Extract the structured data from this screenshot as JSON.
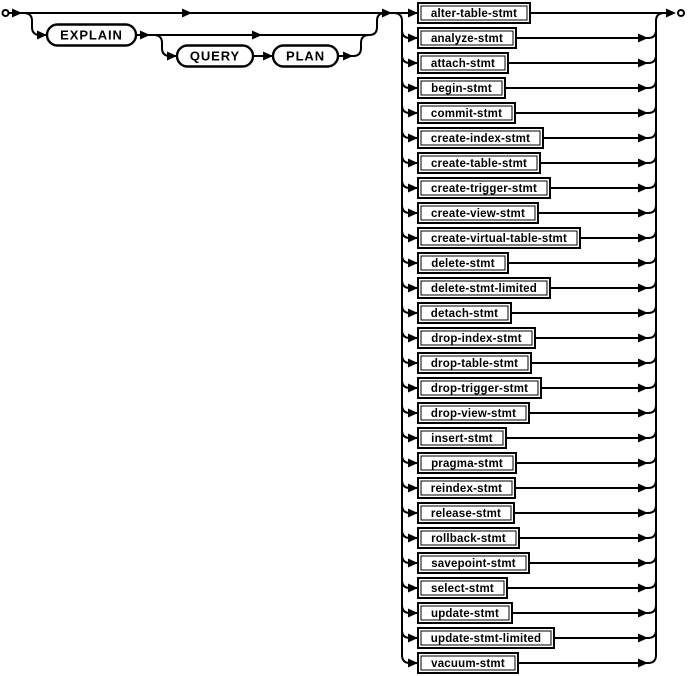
{
  "colors": {
    "line": "#000000",
    "background": "#ffffff",
    "box_fill": "#ffffff",
    "text": "#000000"
  },
  "railroad": {
    "kind": "syntax-diagram",
    "prefix": {
      "optional": true,
      "terminal": "EXPLAIN",
      "optional_group": [
        "QUERY",
        "PLAN"
      ]
    },
    "alternatives": [
      "alter-table-stmt",
      "analyze-stmt",
      "attach-stmt",
      "begin-stmt",
      "commit-stmt",
      "create-index-stmt",
      "create-table-stmt",
      "create-trigger-stmt",
      "create-view-stmt",
      "create-virtual-table-stmt",
      "delete-stmt",
      "delete-stmt-limited",
      "detach-stmt",
      "drop-index-stmt",
      "drop-table-stmt",
      "drop-trigger-stmt",
      "drop-view-stmt",
      "insert-stmt",
      "pragma-stmt",
      "reindex-stmt",
      "release-stmt",
      "rollback-stmt",
      "savepoint-stmt",
      "select-stmt",
      "update-stmt",
      "update-stmt-limited",
      "vacuum-stmt"
    ]
  }
}
